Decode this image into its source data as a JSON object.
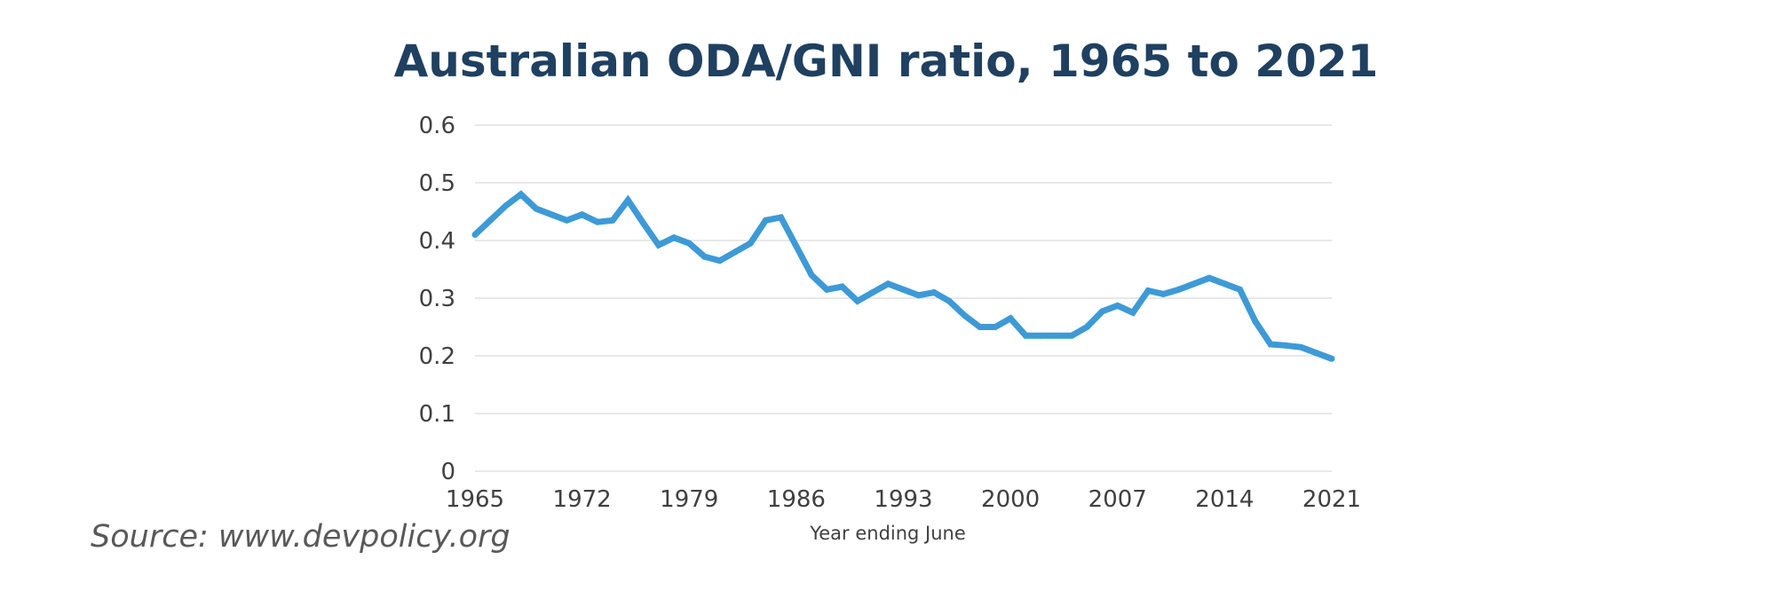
{
  "chart_data": {
    "type": "line",
    "title": "Australian ODA/GNI ratio, 1965 to 2021",
    "xlabel": "Year ending June",
    "ylabel": "",
    "xlim": [
      1965,
      2021
    ],
    "ylim": [
      0,
      0.6
    ],
    "x_ticks": [
      "1965",
      "1972",
      "1979",
      "1986",
      "1993",
      "2000",
      "2007",
      "2014",
      "2021"
    ],
    "y_ticks": [
      "0",
      "0.1",
      "0.2",
      "0.3",
      "0.4",
      "0.5",
      "0.6"
    ],
    "grid": true,
    "legend": false,
    "series": [
      {
        "color": "#3d9ad6",
        "x": [
          1965,
          1966,
          1967,
          1968,
          1969,
          1970,
          1971,
          1972,
          1973,
          1974,
          1975,
          1976,
          1977,
          1978,
          1979,
          1980,
          1981,
          1982,
          1983,
          1984,
          1985,
          1986,
          1987,
          1988,
          1989,
          1990,
          1991,
          1992,
          1993,
          1994,
          1995,
          1996,
          1997,
          1998,
          1999,
          2000,
          2001,
          2002,
          2003,
          2004,
          2005,
          2006,
          2007,
          2008,
          2009,
          2010,
          2011,
          2012,
          2013,
          2014,
          2015,
          2016,
          2017,
          2018,
          2019,
          2020,
          2021
        ],
        "values": [
          0.41,
          0.435,
          0.46,
          0.48,
          0.455,
          0.445,
          0.435,
          0.445,
          0.432,
          0.435,
          0.47,
          0.43,
          0.392,
          0.405,
          0.395,
          0.372,
          0.365,
          0.38,
          0.395,
          0.435,
          0.44,
          0.39,
          0.34,
          0.315,
          0.32,
          0.295,
          0.31,
          0.325,
          0.315,
          0.305,
          0.31,
          0.295,
          0.27,
          0.25,
          0.25,
          0.265,
          0.235,
          0.235,
          0.235,
          0.235,
          0.25,
          0.277,
          0.287,
          0.275,
          0.313,
          0.307,
          0.315,
          0.325,
          0.335,
          0.325,
          0.315,
          0.26,
          0.22,
          0.218,
          0.215,
          0.205,
          0.195
        ]
      }
    ]
  },
  "source": "Source: www.devpolicy.org"
}
